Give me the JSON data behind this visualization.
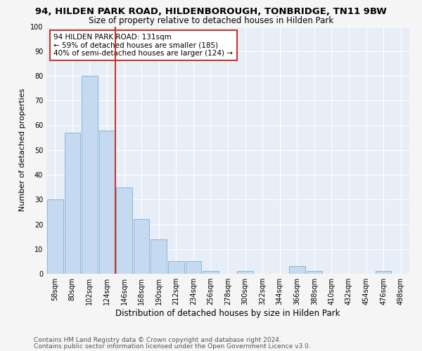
{
  "title1": "94, HILDEN PARK ROAD, HILDENBOROUGH, TONBRIDGE, TN11 9BW",
  "title2": "Size of property relative to detached houses in Hilden Park",
  "xlabel": "Distribution of detached houses by size in Hilden Park",
  "ylabel": "Number of detached properties",
  "categories": [
    "58sqm",
    "80sqm",
    "102sqm",
    "124sqm",
    "146sqm",
    "168sqm",
    "190sqm",
    "212sqm",
    "234sqm",
    "256sqm",
    "278sqm",
    "300sqm",
    "322sqm",
    "344sqm",
    "366sqm",
    "388sqm",
    "410sqm",
    "432sqm",
    "454sqm",
    "476sqm",
    "498sqm"
  ],
  "values": [
    30,
    57,
    80,
    58,
    35,
    22,
    14,
    5,
    5,
    1,
    0,
    1,
    0,
    0,
    3,
    1,
    0,
    0,
    0,
    1,
    0
  ],
  "bar_color": "#c5d9f0",
  "bar_edge_color": "#7bafd4",
  "vline_color": "#c0392b",
  "annotation_text": "94 HILDEN PARK ROAD: 131sqm\n← 59% of detached houses are smaller (185)\n40% of semi-detached houses are larger (124) →",
  "annotation_box_color": "#ffffff",
  "annotation_box_edge": "#c0392b",
  "ylim": [
    0,
    100
  ],
  "yticks": [
    0,
    10,
    20,
    30,
    40,
    50,
    60,
    70,
    80,
    90,
    100
  ],
  "footer1": "Contains HM Land Registry data © Crown copyright and database right 2024.",
  "footer2": "Contains public sector information licensed under the Open Government Licence v3.0.",
  "bg_color": "#e8eef8",
  "grid_color": "#ffffff",
  "fig_bg_color": "#f5f5f5",
  "title1_fontsize": 9.5,
  "title2_fontsize": 8.5,
  "xlabel_fontsize": 8.5,
  "ylabel_fontsize": 8,
  "tick_fontsize": 7,
  "footer_fontsize": 6.5,
  "annot_fontsize": 7.5
}
